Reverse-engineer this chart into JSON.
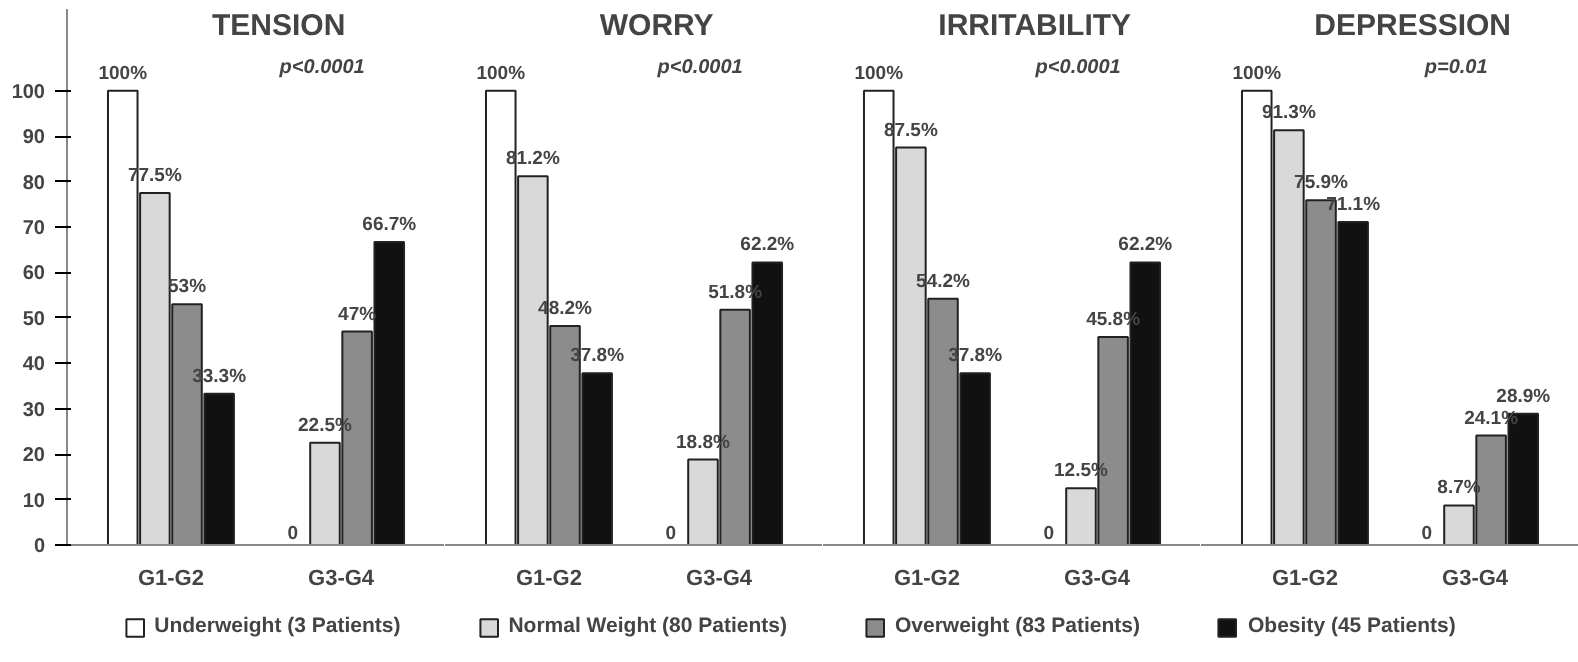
{
  "chart_data": [
    {
      "type": "bar",
      "title": "TENSION",
      "annotations": [
        "p<0.0001"
      ],
      "categories": [
        "G1-G2",
        "G3-G4"
      ],
      "ylim": [
        0,
        118
      ],
      "yticks": [
        0,
        10,
        20,
        30,
        40,
        50,
        60,
        70,
        80,
        90,
        100
      ],
      "legend": "bottom",
      "series": [
        {
          "name": "Underweight (3 Patients)",
          "color": "#ffffff",
          "values": [
            100,
            0
          ],
          "value_labels": [
            "100%",
            "0"
          ]
        },
        {
          "name": "Normal Weight (80 Patients)",
          "color": "#d9d9d9",
          "values": [
            77.5,
            22.5
          ],
          "value_labels": [
            "77.5%",
            "22.5%"
          ]
        },
        {
          "name": "Overweight (83 Patients)",
          "color": "#8c8c8c",
          "values": [
            53,
            47
          ],
          "value_labels": [
            "53%",
            "47%"
          ]
        },
        {
          "name": "Obesity (45 Patients)",
          "color": "#111111",
          "values": [
            33.3,
            66.7
          ],
          "value_labels": [
            "33.3%",
            "66.7%"
          ]
        }
      ]
    },
    {
      "type": "bar",
      "title": "WORRY",
      "annotations": [
        "p<0.0001"
      ],
      "categories": [
        "G1-G2",
        "G3-G4"
      ],
      "tick_labels": "x",
      "series": [
        {
          "color": "#ffffff",
          "values": [
            100,
            0
          ],
          "value_labels": [
            "100%",
            "0"
          ]
        },
        {
          "color": "#d9d9d9",
          "values": [
            81.2,
            18.8
          ],
          "value_labels": [
            "81.2%",
            "18.8%"
          ]
        },
        {
          "color": "#8c8c8c",
          "values": [
            48.2,
            51.8
          ],
          "value_labels": [
            "48.2%",
            "51.8%"
          ]
        },
        {
          "color": "#111111",
          "values": [
            37.8,
            62.2
          ],
          "value_labels": [
            "37.8%",
            "62.2%"
          ]
        }
      ]
    },
    {
      "type": "bar",
      "title": "IRRITABILITY",
      "annotations": [
        "p<0.0001"
      ],
      "categories": [
        "G1-G2",
        "G3-G4"
      ],
      "tick_labels": "x",
      "series": [
        {
          "color": "#ffffff",
          "values": [
            100,
            0
          ],
          "value_labels": [
            "100%",
            "0"
          ]
        },
        {
          "color": "#d9d9d9",
          "values": [
            87.5,
            12.5
          ],
          "value_labels": [
            "87.5%",
            "12.5%"
          ]
        },
        {
          "color": "#8c8c8c",
          "values": [
            54.2,
            45.8
          ],
          "value_labels": [
            "54.2%",
            "45.8%"
          ]
        },
        {
          "color": "#111111",
          "values": [
            37.8,
            62.2
          ],
          "value_labels": [
            "37.8%",
            "62.2%"
          ]
        }
      ]
    },
    {
      "type": "bar",
      "title": "DEPRESSION",
      "annotations": [
        "p=0.01"
      ],
      "categories": [
        "G1-G2",
        "G3-G4"
      ],
      "tick_labels": "x",
      "series": [
        {
          "color": "#ffffff",
          "values": [
            100,
            0
          ],
          "value_labels": [
            "100%",
            "0"
          ]
        },
        {
          "color": "#d9d9d9",
          "values": [
            91.3,
            8.7
          ],
          "value_labels": [
            "91.3%",
            "8.7%"
          ]
        },
        {
          "color": "#8c8c8c",
          "values": [
            75.9,
            24.1
          ],
          "value_labels": [
            "75.9%",
            "24.1%"
          ]
        },
        {
          "color": "#111111",
          "values": [
            71.1,
            28.9
          ],
          "value_labels": [
            "71.1%",
            "28.9%"
          ]
        }
      ]
    }
  ]
}
